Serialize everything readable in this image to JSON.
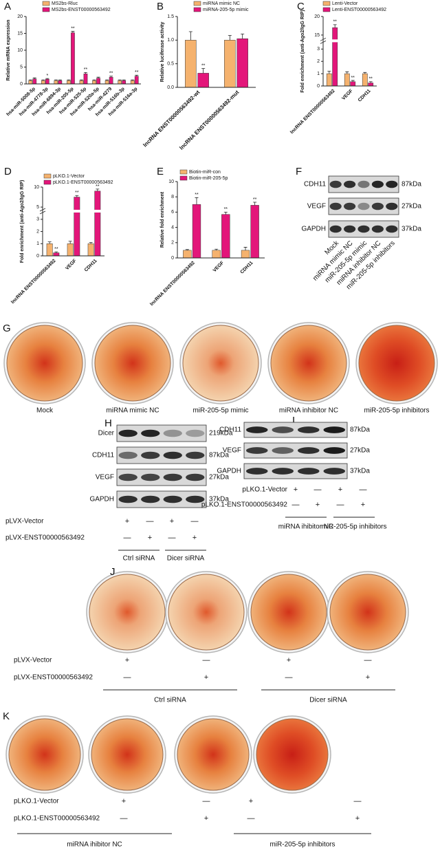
{
  "chart_data": [
    {
      "type": "bar",
      "panel": "A",
      "y_label": "Relative mRNA expression",
      "categories": [
        "hsa-miR-5008-5p",
        "hsa-miR-4778-3p",
        "hsa-miR-6894-3p",
        "hsa-miR-205-5p",
        "hsa-miR-525-5p",
        "hsa-miR-520a-5p",
        "hsa-miR-4279",
        "hsa-miR-516b-3p",
        "hsa-miR-516a-3p"
      ],
      "series": [
        {
          "name": "MS2bs-Rluc",
          "color": "#f5b26e",
          "values": [
            1,
            1,
            1,
            1,
            1,
            1,
            1,
            1,
            1
          ],
          "errors": [
            0.2,
            0.2,
            0.2,
            0.2,
            0.2,
            0.2,
            0.2,
            0.2,
            0.2
          ]
        },
        {
          "name": "MS2bs-ENST00000563492",
          "color": "#e3167a",
          "values": [
            1.5,
            1.4,
            1.0,
            15.2,
            3.0,
            1.7,
            2.0,
            1.0,
            2.3
          ],
          "errors": [
            0.3,
            0.2,
            0.2,
            0.4,
            0.4,
            0.3,
            0.3,
            0.2,
            0.3
          ],
          "sig": [
            null,
            "*",
            null,
            "**",
            "**",
            null,
            "**",
            null,
            "**"
          ]
        }
      ],
      "ylim": [
        0,
        20
      ],
      "yticks": [
        0,
        5,
        10,
        15,
        20
      ]
    },
    {
      "type": "bar",
      "panel": "B",
      "y_label": "Relative luciferase activity",
      "categories": [
        "lncRNA ENST00000563492-wt",
        "lncRNA ENST00000563492-mut"
      ],
      "series": [
        {
          "name": "miRNA mimic NC",
          "color": "#f5b26e",
          "values": [
            1.0,
            1.0
          ],
          "errors": [
            0.18,
            0.1
          ]
        },
        {
          "name": "miRNA-205-5p mimic",
          "color": "#e3167a",
          "values": [
            0.3,
            1.03
          ],
          "errors": [
            0.1,
            0.1
          ],
          "sig": [
            "**",
            null
          ]
        }
      ],
      "ylim": [
        0,
        1.5
      ],
      "yticks": [
        {
          "value": 0,
          "label": "0.0"
        },
        {
          "value": 0.5,
          "label": "0.5"
        },
        {
          "value": 1,
          "label": "1.0"
        },
        {
          "value": 1.5,
          "label": "1.5"
        }
      ]
    },
    {
      "type": "bar",
      "panel": "C",
      "y_label": "Fold enrichment (anti-Ago2/IgG RIP)",
      "categories": [
        "lncRNA ENST00000563492",
        "VEGF",
        "CDH11"
      ],
      "series": [
        {
          "name": "Lenti-Vector",
          "color": "#f5b26e",
          "values": [
            1,
            1,
            1
          ],
          "errors": [
            0.2,
            0.15,
            0.1
          ]
        },
        {
          "name": "Lenti-ENST00000563492",
          "color": "#e3167a",
          "values": [
            17,
            0.35,
            0.25
          ],
          "errors": [
            0.8,
            0.1,
            0.1
          ],
          "sig": [
            "**",
            "**",
            "**"
          ]
        }
      ],
      "ylim": [
        0,
        20
      ],
      "axis_break": [
        3.5,
        14
      ],
      "yticks": [
        0,
        1,
        2,
        3,
        15,
        20
      ]
    },
    {
      "type": "bar",
      "panel": "D",
      "y_label": "Fold enrichment (anti-Ago2/IgG RIP)",
      "categories": [
        "lncRNA ENST00000563492",
        "VEGF",
        "CDH11"
      ],
      "series": [
        {
          "name": "pLKO.1-Vector",
          "color": "#f5b26e",
          "values": [
            1,
            1,
            1
          ],
          "errors": [
            0.15,
            0.2,
            0.1
          ]
        },
        {
          "name": "pLKO.1-ENST00000563492",
          "color": "#e3167a",
          "values": [
            0.25,
            7.5,
            9
          ],
          "errors": [
            0.08,
            0.4,
            0.5
          ],
          "sig": [
            "**",
            "**",
            "**"
          ]
        }
      ],
      "ylim": [
        0,
        10
      ],
      "axis_break": [
        3.5,
        4.5
      ],
      "yticks": [
        0,
        1,
        2,
        3,
        5,
        10
      ]
    },
    {
      "type": "bar",
      "panel": "E",
      "y_label": "Relative fold enrichment",
      "categories": [
        "lncRNA ENST00000563492",
        "VEGF",
        "CDH11"
      ],
      "series": [
        {
          "name": "Biotin-miR-con",
          "color": "#f5b26e",
          "values": [
            1,
            1,
            1
          ],
          "errors": [
            0.1,
            0.15,
            0.4
          ]
        },
        {
          "name": "Biotin-miR-205-5p",
          "color": "#e3167a",
          "values": [
            7,
            5.7,
            6.9
          ],
          "errors": [
            0.9,
            0.3,
            0.4
          ],
          "sig": [
            "**",
            "**",
            "**"
          ]
        }
      ],
      "ylim": [
        0,
        10
      ],
      "yticks": [
        0,
        2,
        4,
        6,
        8,
        10
      ]
    }
  ],
  "blots": [
    {
      "panel": "F",
      "rows": [
        {
          "protein": "CDH11",
          "size": "87kDa"
        },
        {
          "protein": "VEGF",
          "size": "27kDa"
        },
        {
          "protein": "GAPDH",
          "size": "37kDa"
        }
      ],
      "lanes": [
        "Mock",
        "miRNA mimic NC",
        "miR-205-5p mimic",
        "miRNA inhibitor NC",
        "miR-205-5p inhibitors"
      ]
    },
    {
      "panel": "H",
      "rows": [
        {
          "protein": "Dicer",
          "size": "219kDa"
        },
        {
          "protein": "CDH11",
          "size": "87kDa"
        },
        {
          "protein": "VEGF",
          "size": "27kDa"
        },
        {
          "protein": "GAPDH",
          "size": "37kDa"
        }
      ],
      "conditions": [
        {
          "name": "pLVX-Vector",
          "signs": [
            "+",
            "—",
            "+",
            "—"
          ]
        },
        {
          "name": "pLVX-ENST00000563492",
          "signs": [
            "—",
            "+",
            "—",
            "+"
          ]
        }
      ],
      "groups": [
        "Ctrl siRNA",
        "Dicer siRNA"
      ]
    },
    {
      "panel": "I",
      "rows": [
        {
          "protein": "CDH11",
          "size": "87kDa"
        },
        {
          "protein": "VEGF",
          "size": "27kDa"
        },
        {
          "protein": "GAPDH",
          "size": "37kDa"
        }
      ],
      "conditions": [
        {
          "name": "pLKO.1-Vector",
          "signs": [
            "+",
            "—",
            "+",
            "—"
          ]
        },
        {
          "name": "pLKO.1-ENST00000563492",
          "signs": [
            "—",
            "+",
            "—",
            "+"
          ]
        }
      ],
      "groups": [
        "miRNA ihibitor NC",
        "miR-205-5p inhibitors"
      ]
    }
  ],
  "dishes": [
    {
      "panel": "G",
      "labels": [
        "Mock",
        "miRNA mimic NC",
        "miR-205-5p mimic",
        "miRNA inhibitor NC",
        "miR-205-5p inhibitors"
      ]
    },
    {
      "panel": "J",
      "conditions": [
        {
          "name": "pLVX-Vector",
          "signs": [
            "+",
            "—",
            "+",
            "—"
          ]
        },
        {
          "name": "pLVX-ENST00000563492",
          "signs": [
            "—",
            "+",
            "—",
            "+"
          ]
        }
      ],
      "groups": [
        "Ctrl siRNA",
        "Dicer siRNA"
      ]
    },
    {
      "panel": "K",
      "conditions": [
        {
          "name": "pLKO.1-Vector",
          "signs": [
            "+",
            "—",
            "+",
            "—"
          ]
        },
        {
          "name": "pLKO.1-ENST00000563492",
          "signs": [
            "—",
            "+",
            "—",
            "+"
          ]
        }
      ],
      "groups": [
        "miRNA ihibitor NC",
        "miR-205-5p inhibitors"
      ]
    }
  ]
}
